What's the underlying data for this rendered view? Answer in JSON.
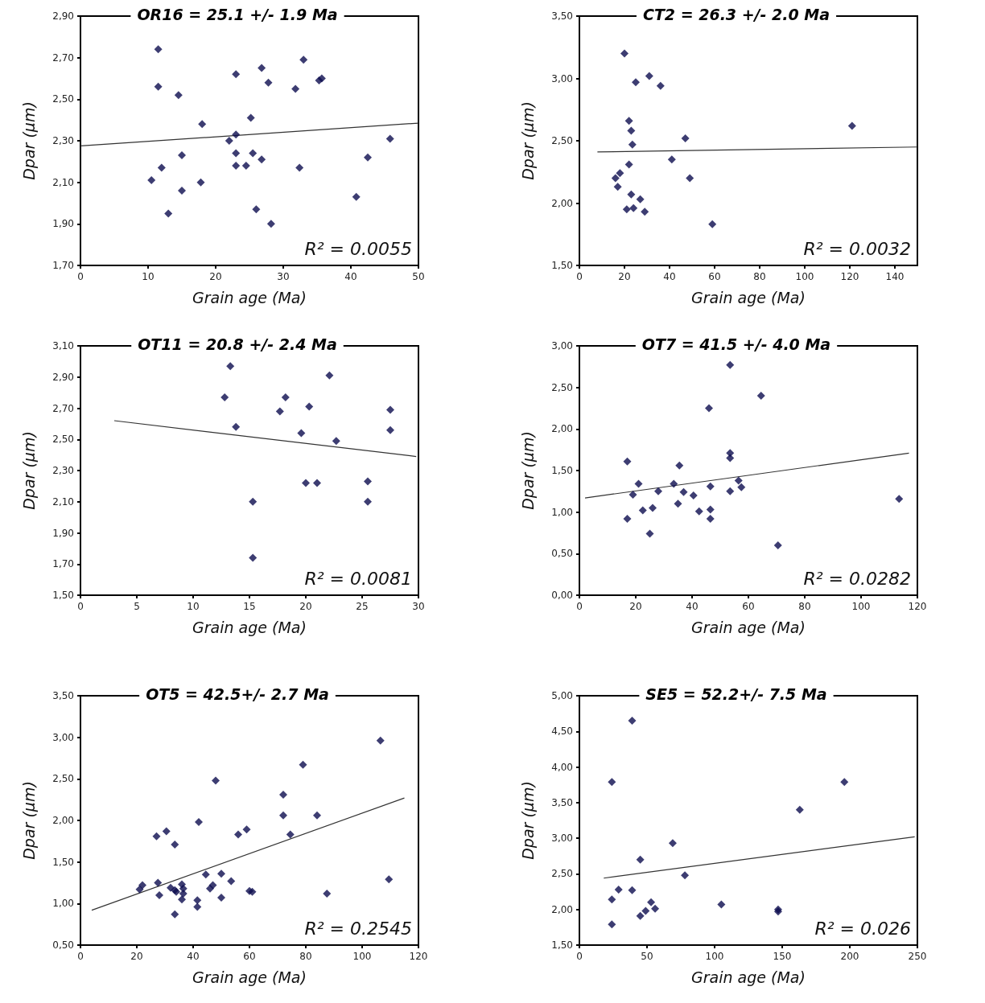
{
  "chart_data": [
    {
      "type": "scatter",
      "title": "OR16 = 25.1 +/- 1.9 Ma",
      "xlabel": "Grain age (Ma)",
      "ylabel": "Dpar (µm)",
      "annotations": [
        "R² = 0.0055"
      ],
      "marker": "diamond",
      "grid": false,
      "xlim": [
        0,
        50
      ],
      "xticks": [
        0,
        10,
        20,
        30,
        40,
        50
      ],
      "ylim": [
        1.7,
        2.9
      ],
      "yticks": [
        {
          "value": 1.7,
          "label": "1,70"
        },
        {
          "value": 1.9,
          "label": "1,90"
        },
        {
          "value": 2.1,
          "label": "2,10"
        },
        {
          "value": 2.3,
          "label": "2,30"
        },
        {
          "value": 2.5,
          "label": "2,50"
        },
        {
          "value": 2.7,
          "label": "2,70"
        },
        {
          "value": 2.9,
          "label": "2,90"
        }
      ],
      "series": [
        {
          "color": "#0d0d4f",
          "x": [
            11.5,
            11.5,
            14.5,
            10.5,
            12,
            13,
            15,
            15,
            18,
            17.8,
            22,
            23,
            23,
            23,
            23,
            24.5,
            25.2,
            25.5,
            26,
            26.8,
            26.8,
            27.8,
            28.2,
            31.8,
            32.4,
            33,
            35.3,
            35.7,
            40.8,
            42.5,
            45.8
          ],
          "values": [
            2.74,
            2.56,
            2.52,
            2.11,
            2.17,
            1.95,
            2.23,
            2.06,
            2.38,
            2.1,
            2.3,
            2.62,
            2.33,
            2.24,
            2.18,
            2.18,
            2.41,
            2.24,
            1.97,
            2.65,
            2.21,
            2.58,
            1.9,
            2.55,
            2.17,
            2.69,
            2.59,
            2.6,
            2.03,
            2.22,
            2.31
          ]
        },
        {
          "type": "line",
          "color": "#333333",
          "marker": "none",
          "line_style": "solid",
          "x": [
            0,
            50
          ],
          "values": [
            2.275,
            2.385
          ]
        }
      ]
    },
    {
      "type": "scatter",
      "title": "CT2 = 26.3 +/- 2.0 Ma",
      "xlabel": "Grain age (Ma)",
      "ylabel": "Dpar (µm)",
      "annotations": [
        "R² = 0.0032"
      ],
      "marker": "diamond",
      "grid": false,
      "xlim": [
        0,
        150
      ],
      "xticks": [
        0,
        20,
        40,
        60,
        80,
        100,
        120,
        140
      ],
      "ylim": [
        1.5,
        3.5
      ],
      "yticks": [
        {
          "value": 1.5,
          "label": "1,50"
        },
        {
          "value": 2,
          "label": "2,00"
        },
        {
          "value": 2.5,
          "label": "2,50"
        },
        {
          "value": 3,
          "label": "3,00"
        },
        {
          "value": 3.5,
          "label": "3,50"
        }
      ],
      "series": [
        {
          "color": "#0d0d4f",
          "x": [
            20,
            31,
            25,
            36,
            22,
            23,
            23.5,
            47,
            121,
            41,
            22,
            18,
            16,
            17,
            49,
            23,
            27,
            21,
            24,
            29,
            59
          ],
          "values": [
            3.2,
            3.02,
            2.97,
            2.94,
            2.66,
            2.58,
            2.47,
            2.52,
            2.62,
            2.35,
            2.31,
            2.24,
            2.2,
            2.13,
            2.2,
            2.07,
            2.03,
            1.95,
            1.96,
            1.93,
            1.83
          ]
        },
        {
          "type": "line",
          "color": "#333333",
          "marker": "none",
          "line_style": "solid",
          "x": [
            8,
            150
          ],
          "values": [
            2.41,
            2.45
          ]
        }
      ]
    },
    {
      "type": "scatter",
      "title": "OT11 = 20.8 +/- 2.4 Ma",
      "xlabel": "Grain age (Ma)",
      "ylabel": "Dpar (µm)",
      "annotations": [
        "R² = 0.0081"
      ],
      "marker": "diamond",
      "grid": false,
      "xlim": [
        0,
        30
      ],
      "xticks": [
        0,
        5,
        10,
        15,
        20,
        25,
        30
      ],
      "ylim": [
        1.5,
        3.1
      ],
      "yticks": [
        {
          "value": 1.5,
          "label": "1,50"
        },
        {
          "value": 1.7,
          "label": "1,70"
        },
        {
          "value": 1.9,
          "label": "1,90"
        },
        {
          "value": 2.1,
          "label": "2,10"
        },
        {
          "value": 2.3,
          "label": "2,30"
        },
        {
          "value": 2.5,
          "label": "2,50"
        },
        {
          "value": 2.7,
          "label": "2,70"
        },
        {
          "value": 2.9,
          "label": "2,90"
        },
        {
          "value": 3.1,
          "label": "3,10"
        }
      ],
      "series": [
        {
          "color": "#0d0d4f",
          "x": [
            13.3,
            12.8,
            13.8,
            15.3,
            15.3,
            17.7,
            18.2,
            19.6,
            20,
            20.3,
            21,
            22.1,
            22.7,
            25.5,
            25.5,
            27.5,
            27.5
          ],
          "values": [
            2.97,
            2.77,
            2.58,
            2.1,
            1.74,
            2.68,
            2.77,
            2.54,
            2.22,
            2.71,
            2.22,
            2.91,
            2.49,
            2.23,
            2.1,
            2.69,
            2.56
          ]
        },
        {
          "type": "line",
          "color": "#333333",
          "marker": "none",
          "line_style": "solid",
          "x": [
            3,
            29.8
          ],
          "values": [
            2.62,
            2.39
          ]
        }
      ]
    },
    {
      "type": "scatter",
      "title": "OT7 = 41.5 +/- 4.0 Ma",
      "xlabel": "Grain age (Ma)",
      "ylabel": "Dpar (µm)",
      "annotations": [
        "R² = 0.0282"
      ],
      "marker": "diamond",
      "grid": false,
      "xlim": [
        0,
        120
      ],
      "xticks": [
        0,
        20,
        40,
        60,
        80,
        100,
        120
      ],
      "ylim": [
        0,
        3
      ],
      "yticks": [
        {
          "value": 0,
          "label": "0,00"
        },
        {
          "value": 0.5,
          "label": "0,50"
        },
        {
          "value": 1,
          "label": "1,00"
        },
        {
          "value": 1.5,
          "label": "1,50"
        },
        {
          "value": 2,
          "label": "2,00"
        },
        {
          "value": 2.5,
          "label": "2,50"
        },
        {
          "value": 3,
          "label": "3,00"
        }
      ],
      "series": [
        {
          "color": "#0d0d4f",
          "x": [
            17,
            17,
            19,
            21,
            22.5,
            25,
            26,
            28,
            33.5,
            35,
            35.5,
            37,
            40.5,
            42.5,
            46,
            46.5,
            46.5,
            46.5,
            53.5,
            53.5,
            53.5,
            53.5,
            56.5,
            57.5,
            64.5,
            70.5,
            113.5
          ],
          "values": [
            1.61,
            0.92,
            1.21,
            1.34,
            1.02,
            0.74,
            1.05,
            1.25,
            1.34,
            1.1,
            1.56,
            1.24,
            1.2,
            1.01,
            2.25,
            1.31,
            1.03,
            0.92,
            2.77,
            1.71,
            1.65,
            1.25,
            1.38,
            1.3,
            2.4,
            0.6,
            1.16
          ]
        },
        {
          "type": "line",
          "color": "#333333",
          "marker": "none",
          "line_style": "solid",
          "x": [
            2,
            117
          ],
          "values": [
            1.17,
            1.71
          ]
        }
      ]
    },
    {
      "type": "scatter",
      "title": "OT5 = 42.5+/- 2.7 Ma",
      "xlabel": "Grain age (Ma)",
      "ylabel": "Dpar (µm)",
      "annotations": [
        "R² = 0.2545"
      ],
      "marker": "diamond",
      "grid": false,
      "xlim": [
        0,
        120
      ],
      "xticks": [
        0,
        20,
        40,
        60,
        80,
        100,
        120
      ],
      "ylim": [
        0.5,
        3.5
      ],
      "yticks": [
        {
          "value": 0.5,
          "label": "0,50"
        },
        {
          "value": 1,
          "label": "1,00"
        },
        {
          "value": 1.5,
          "label": "1,50"
        },
        {
          "value": 2,
          "label": "2,00"
        },
        {
          "value": 2.5,
          "label": "2,50"
        },
        {
          "value": 3,
          "label": "3,00"
        },
        {
          "value": 3.5,
          "label": "3,50"
        }
      ],
      "series": [
        {
          "color": "#0d0d4f",
          "x": [
            21,
            22,
            27,
            27.5,
            28,
            30.5,
            32,
            33.5,
            33.5,
            34,
            33.5,
            36,
            36.5,
            36.5,
            36,
            41.5,
            41.5,
            42,
            44.5,
            46,
            47,
            48,
            50,
            50,
            53.5,
            56,
            59,
            60,
            61,
            72,
            72,
            74.5,
            79,
            84,
            87.5,
            106.5,
            109.5
          ],
          "values": [
            1.17,
            1.22,
            1.81,
            1.25,
            1.1,
            1.87,
            1.19,
            1.71,
            1.16,
            1.14,
            0.87,
            1.23,
            1.18,
            1.12,
            1.05,
            1.04,
            0.96,
            1.98,
            1.35,
            1.18,
            1.22,
            2.48,
            1.36,
            1.07,
            1.27,
            1.83,
            1.89,
            1.15,
            1.14,
            2.31,
            2.06,
            1.83,
            2.67,
            2.06,
            1.12,
            2.96,
            1.29
          ]
        },
        {
          "type": "line",
          "color": "#333333",
          "marker": "none",
          "line_style": "solid",
          "x": [
            4,
            115
          ],
          "values": [
            0.92,
            2.27
          ]
        }
      ]
    },
    {
      "type": "scatter",
      "title": "SE5 = 52.2+/- 7.5 Ma",
      "xlabel": "Grain age (Ma)",
      "ylabel": "Dpar (µm)",
      "annotations": [
        "R² = 0.026"
      ],
      "marker": "diamond",
      "grid": false,
      "xlim": [
        0,
        250
      ],
      "xticks": [
        0,
        50,
        100,
        150,
        200,
        250
      ],
      "ylim": [
        1.5,
        5
      ],
      "yticks": [
        {
          "value": 1.5,
          "label": "1,50"
        },
        {
          "value": 2,
          "label": "2,00"
        },
        {
          "value": 2.5,
          "label": "2,50"
        },
        {
          "value": 3,
          "label": "3,00"
        },
        {
          "value": 3.5,
          "label": "3,50"
        },
        {
          "value": 4,
          "label": "4,00"
        },
        {
          "value": 4.5,
          "label": "4,50"
        },
        {
          "value": 5,
          "label": "5,00"
        }
      ],
      "series": [
        {
          "color": "#0d0d4f",
          "x": [
            39,
            24,
            196,
            163,
            69,
            45,
            78,
            29,
            39,
            24,
            53,
            49,
            56,
            45,
            24,
            105,
            147,
            147
          ],
          "values": [
            4.65,
            3.79,
            3.79,
            3.4,
            2.93,
            2.7,
            2.48,
            2.28,
            2.27,
            2.14,
            2.1,
            1.98,
            2.01,
            1.91,
            1.79,
            2.07,
            2.0,
            1.97
          ]
        },
        {
          "type": "line",
          "color": "#333333",
          "marker": "none",
          "line_style": "solid",
          "x": [
            18,
            248
          ],
          "values": [
            2.44,
            3.02
          ]
        }
      ]
    }
  ]
}
